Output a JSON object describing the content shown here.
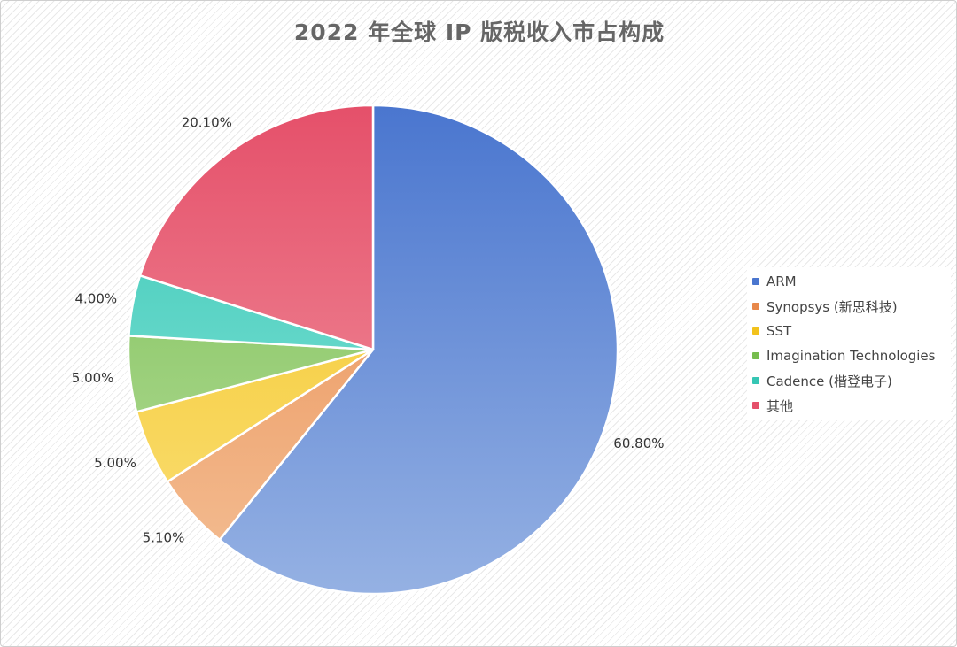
{
  "chart_data": {
    "type": "pie",
    "title": "2022 年全球 IP 版税收入市占构成",
    "legend_position": "right",
    "slices": [
      {
        "name": "ARM",
        "value": 60.8,
        "label": "60.80%",
        "color": "#4a76cf",
        "color_light": "#95b1e3"
      },
      {
        "name": "Synopsys (新思科技)",
        "value": 5.1,
        "label": "5.10%",
        "color": "#e8884a",
        "color_light": "#f4bf95"
      },
      {
        "name": "SST",
        "value": 5.0,
        "label": "5.00%",
        "color": "#f2c21c",
        "color_light": "#fbe07a"
      },
      {
        "name": "Imagination Technologies",
        "value": 5.0,
        "label": "5.00%",
        "color": "#77bd4e",
        "color_light": "#b8de9e"
      },
      {
        "name": "Cadence (楷登电子)",
        "value": 4.0,
        "label": "4.00%",
        "color": "#36c6b4",
        "color_light": "#8fe7dd"
      },
      {
        "name": "其他",
        "value": 20.1,
        "label": "20.10%",
        "color": "#e5506a",
        "color_light": "#f29aa4"
      }
    ]
  }
}
